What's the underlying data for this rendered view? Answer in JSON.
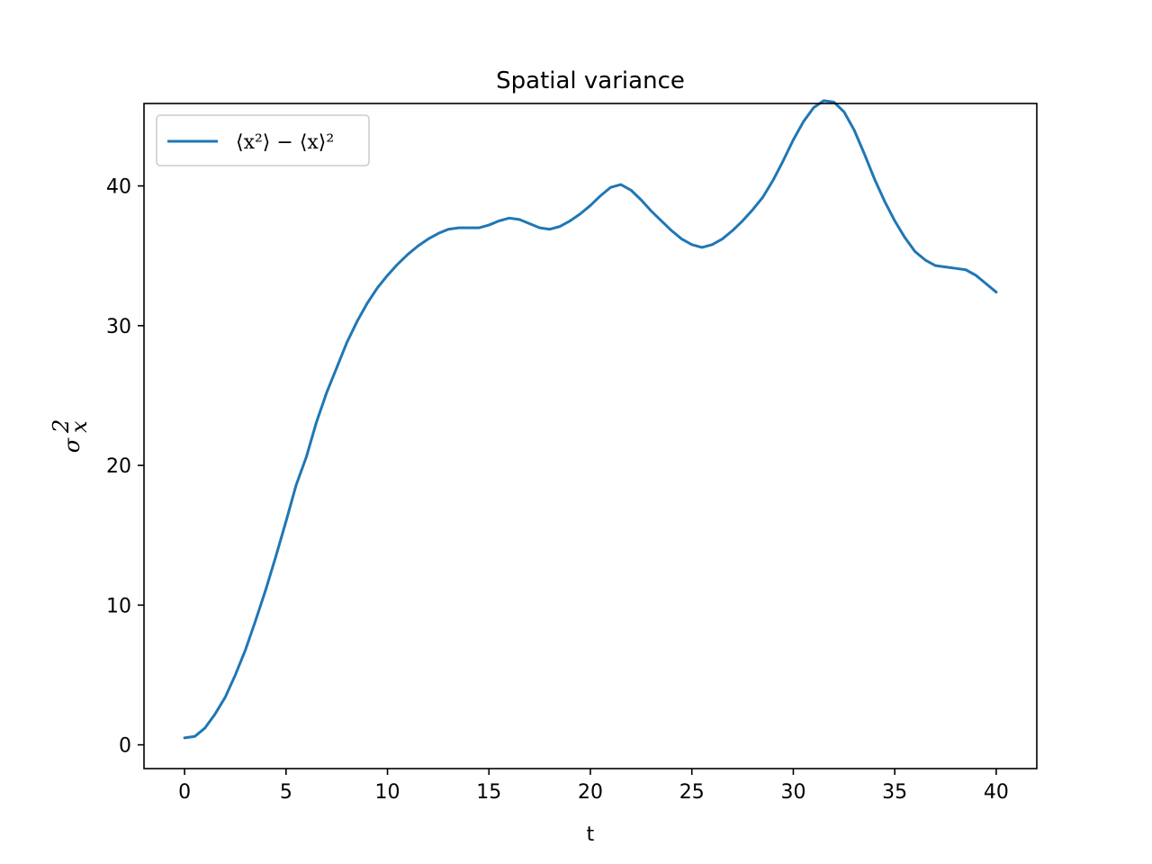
{
  "chart_data": {
    "type": "line",
    "title": "Spatial variance",
    "xlabel": "t",
    "ylabel": {
      "base": "σ",
      "superscript": "2",
      "subscript": "x"
    },
    "xlim": [
      -2,
      42
    ],
    "ylim": [
      -1.7,
      45.9
    ],
    "xticks": [
      0,
      5,
      10,
      15,
      20,
      25,
      30,
      35,
      40
    ],
    "yticks": [
      0,
      10,
      20,
      30,
      40
    ],
    "grid": false,
    "legend_position": "upper-left",
    "series": [
      {
        "name": "⟨x²⟩ − ⟨x⟩²",
        "color": "#1f77b4",
        "points": [
          [
            0,
            0.5
          ],
          [
            0.5,
            0.6
          ],
          [
            1,
            1.2
          ],
          [
            1.5,
            2.2
          ],
          [
            2,
            3.4
          ],
          [
            2.5,
            5.0
          ],
          [
            3,
            6.8
          ],
          [
            3.5,
            8.9
          ],
          [
            4,
            11.1
          ],
          [
            4.5,
            13.5
          ],
          [
            5,
            16.0
          ],
          [
            5.5,
            18.6
          ],
          [
            6,
            20.6
          ],
          [
            6.5,
            23.1
          ],
          [
            7,
            25.2
          ],
          [
            7.5,
            27.0
          ],
          [
            8,
            28.8
          ],
          [
            8.5,
            30.3
          ],
          [
            9,
            31.6
          ],
          [
            9.5,
            32.7
          ],
          [
            10,
            33.6
          ],
          [
            10.5,
            34.4
          ],
          [
            11,
            35.1
          ],
          [
            11.5,
            35.7
          ],
          [
            12,
            36.2
          ],
          [
            12.5,
            36.6
          ],
          [
            13,
            36.9
          ],
          [
            13.5,
            37.0
          ],
          [
            14,
            37.0
          ],
          [
            14.5,
            37.0
          ],
          [
            15,
            37.2
          ],
          [
            15.5,
            37.5
          ],
          [
            16,
            37.7
          ],
          [
            16.5,
            37.6
          ],
          [
            17,
            37.3
          ],
          [
            17.5,
            37.0
          ],
          [
            18,
            36.9
          ],
          [
            18.5,
            37.1
          ],
          [
            19,
            37.5
          ],
          [
            19.5,
            38.0
          ],
          [
            20,
            38.6
          ],
          [
            20.5,
            39.3
          ],
          [
            21,
            39.9
          ],
          [
            21.5,
            40.1
          ],
          [
            22,
            39.7
          ],
          [
            22.5,
            39.0
          ],
          [
            23,
            38.2
          ],
          [
            23.5,
            37.5
          ],
          [
            24,
            36.8
          ],
          [
            24.5,
            36.2
          ],
          [
            25,
            35.8
          ],
          [
            25.5,
            35.6
          ],
          [
            26,
            35.8
          ],
          [
            26.5,
            36.2
          ],
          [
            27,
            36.8
          ],
          [
            27.5,
            37.5
          ],
          [
            28,
            38.3
          ],
          [
            28.5,
            39.2
          ],
          [
            29,
            40.4
          ],
          [
            29.5,
            41.8
          ],
          [
            30,
            43.3
          ],
          [
            30.5,
            44.6
          ],
          [
            31,
            45.6
          ],
          [
            31.5,
            46.1
          ],
          [
            32,
            46.0
          ],
          [
            32.5,
            45.3
          ],
          [
            33,
            44.0
          ],
          [
            33.5,
            42.3
          ],
          [
            34,
            40.5
          ],
          [
            34.5,
            38.9
          ],
          [
            35,
            37.5
          ],
          [
            35.5,
            36.3
          ],
          [
            36,
            35.3
          ],
          [
            36.5,
            34.7
          ],
          [
            37,
            34.3
          ],
          [
            37.5,
            34.2
          ],
          [
            38,
            34.1
          ],
          [
            38.5,
            34.0
          ],
          [
            39,
            33.6
          ],
          [
            39.5,
            33.0
          ],
          [
            40,
            32.4
          ]
        ]
      }
    ]
  }
}
